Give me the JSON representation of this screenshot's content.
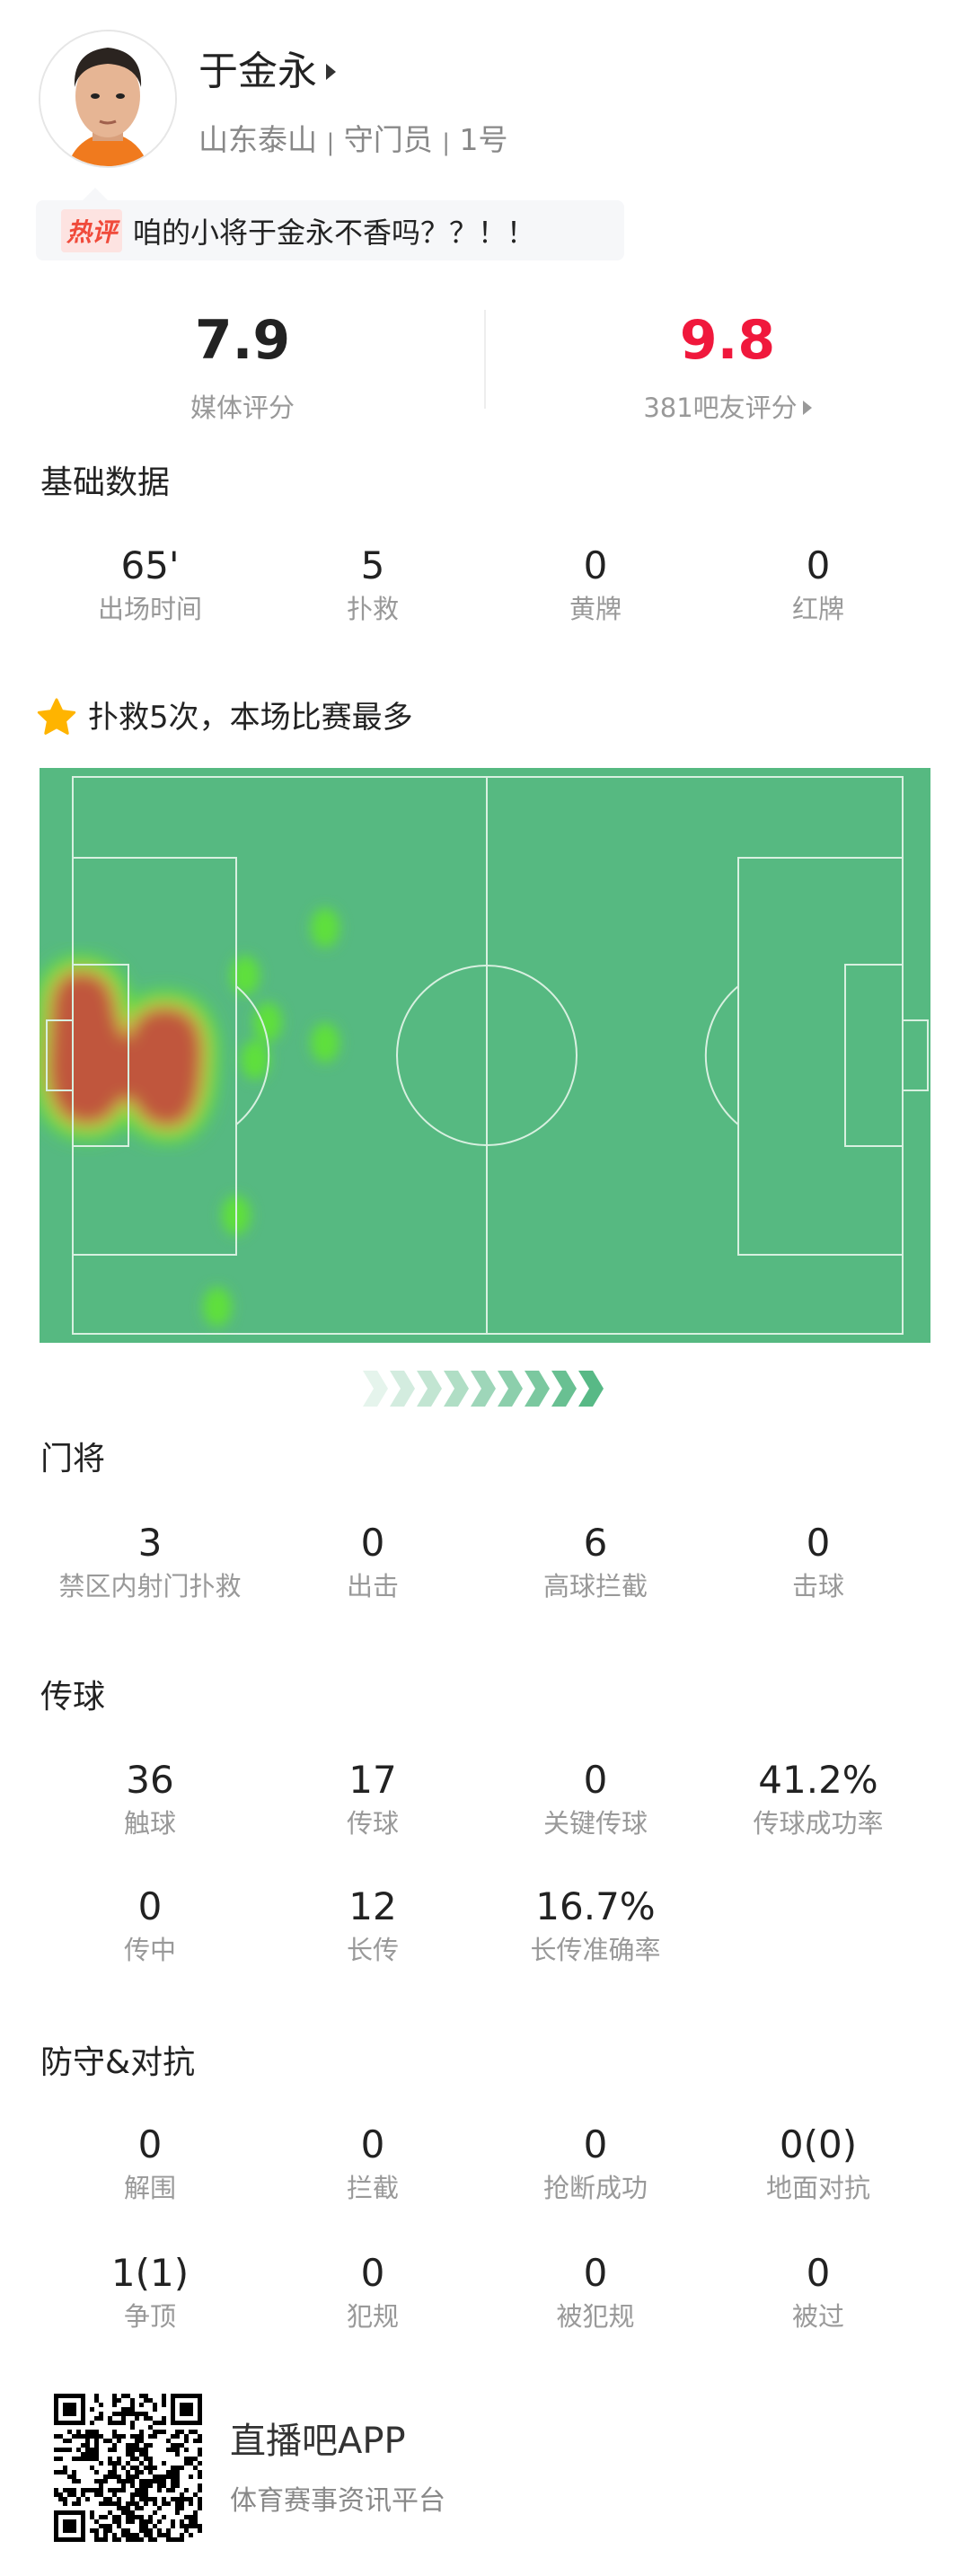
{
  "player": {
    "name": "于金永",
    "team": "山东泰山",
    "position": "守门员",
    "number": "1号",
    "separator": "|"
  },
  "hot_comment": {
    "tag": "热评",
    "text": "咱的小将于金永不香吗？？！！"
  },
  "ratings": {
    "media": {
      "value": "7.9",
      "label": "媒体评分"
    },
    "fans": {
      "value": "9.8",
      "label": "381吧友评分",
      "color": "#f0183c"
    }
  },
  "basic": {
    "title": "基础数据",
    "stats": [
      {
        "value": "65'",
        "label": "出场时间"
      },
      {
        "value": "5",
        "label": "扑救"
      },
      {
        "value": "0",
        "label": "黄牌"
      },
      {
        "value": "0",
        "label": "红牌"
      }
    ]
  },
  "highlight": {
    "icon": "star-icon",
    "text": "扑救5次，本场比赛最多",
    "color": "#ffb400"
  },
  "heatmap": {
    "pitch_color": "#56b981",
    "line_color": "#d8f0e0",
    "hot_color": "#c0563c",
    "warm_color": "#5fe03a"
  },
  "goalkeeping": {
    "title": "门将",
    "stats": [
      {
        "value": "3",
        "label": "禁区内射门扑救"
      },
      {
        "value": "0",
        "label": "出击"
      },
      {
        "value": "6",
        "label": "高球拦截"
      },
      {
        "value": "0",
        "label": "击球"
      }
    ]
  },
  "passing": {
    "title": "传球",
    "stats": [
      {
        "value": "36",
        "label": "触球"
      },
      {
        "value": "17",
        "label": "传球"
      },
      {
        "value": "0",
        "label": "关键传球"
      },
      {
        "value": "41.2%",
        "label": "传球成功率"
      },
      {
        "value": "0",
        "label": "传中"
      },
      {
        "value": "12",
        "label": "长传"
      },
      {
        "value": "16.7%",
        "label": "长传准确率"
      }
    ]
  },
  "defense": {
    "title": "防守&对抗",
    "stats": [
      {
        "value": "0",
        "label": "解围"
      },
      {
        "value": "0",
        "label": "拦截"
      },
      {
        "value": "0",
        "label": "抢断成功"
      },
      {
        "value": "0(0)",
        "label": "地面对抗"
      },
      {
        "value": "1(1)",
        "label": "争顶"
      },
      {
        "value": "0",
        "label": "犯规"
      },
      {
        "value": "0",
        "label": "被犯规"
      },
      {
        "value": "0",
        "label": "被过"
      }
    ]
  },
  "footer": {
    "brand": "直播吧APP",
    "slogan": "体育赛事资讯平台"
  }
}
